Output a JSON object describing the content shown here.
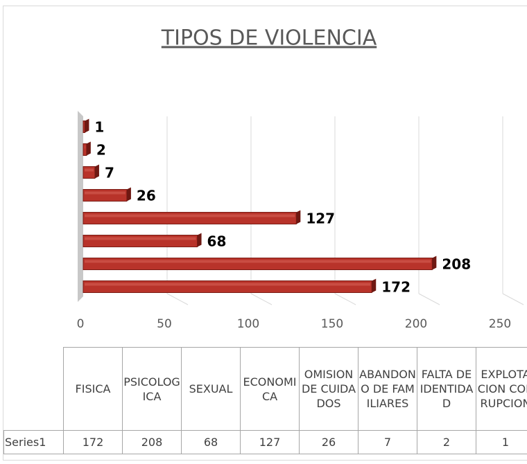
{
  "chart_data": {
    "type": "bar",
    "orientation": "horizontal",
    "title": "TIPOS DE VIOLENCIA",
    "categories": [
      "FISICA",
      "PSICOLOGICA",
      "SEXUAL",
      "ECONOMICA",
      "OMISION DE CUIDADOS",
      "ABANDONO DE FAMILIARES",
      "FALTA DE IDENTIDAD",
      "EXPLOTACION CORRUPCION"
    ],
    "series": [
      {
        "name": "Series1",
        "color": "#b8332a",
        "values": [
          172,
          208,
          68,
          127,
          26,
          7,
          2,
          1
        ]
      }
    ],
    "xlim": [
      0,
      250
    ],
    "xticks": [
      0,
      50,
      100,
      150,
      200,
      250
    ],
    "grid": true,
    "data_table": true
  }
}
